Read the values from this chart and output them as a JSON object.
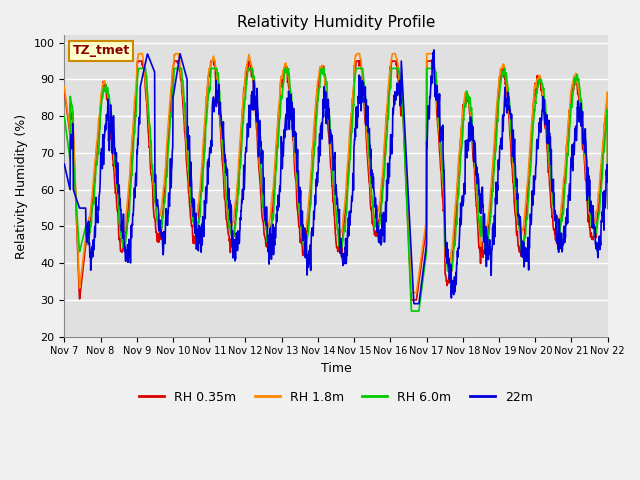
{
  "title": "Relativity Humidity Profile",
  "xlabel": "Time",
  "ylabel": "Relativity Humidity (%)",
  "ylim": [
    20,
    102
  ],
  "yticks": [
    20,
    30,
    40,
    50,
    60,
    70,
    80,
    90,
    100
  ],
  "annotation": "TZ_tmet",
  "legend": [
    "RH 0.35m",
    "RH 1.8m",
    "RH 6.0m",
    "22m"
  ],
  "line_colors": [
    "#dd0000",
    "#ff8800",
    "#00cc00",
    "#0000dd"
  ],
  "fig_color": "#f0f0f0",
  "plot_bg": "#e0e0e0",
  "grid_color": "#ffffff",
  "xtick_labels": [
    "Nov 7",
    "Nov 8",
    "Nov 9",
    "Nov 10",
    "Nov 11",
    "Nov 12",
    "Nov 13",
    "Nov 14",
    "Nov 15",
    "Nov 16",
    "Nov 17",
    "Nov 18",
    "Nov 19",
    "Nov 20",
    "Nov 21",
    "Nov 22"
  ],
  "num_days": 15,
  "pts_per_day": 144
}
